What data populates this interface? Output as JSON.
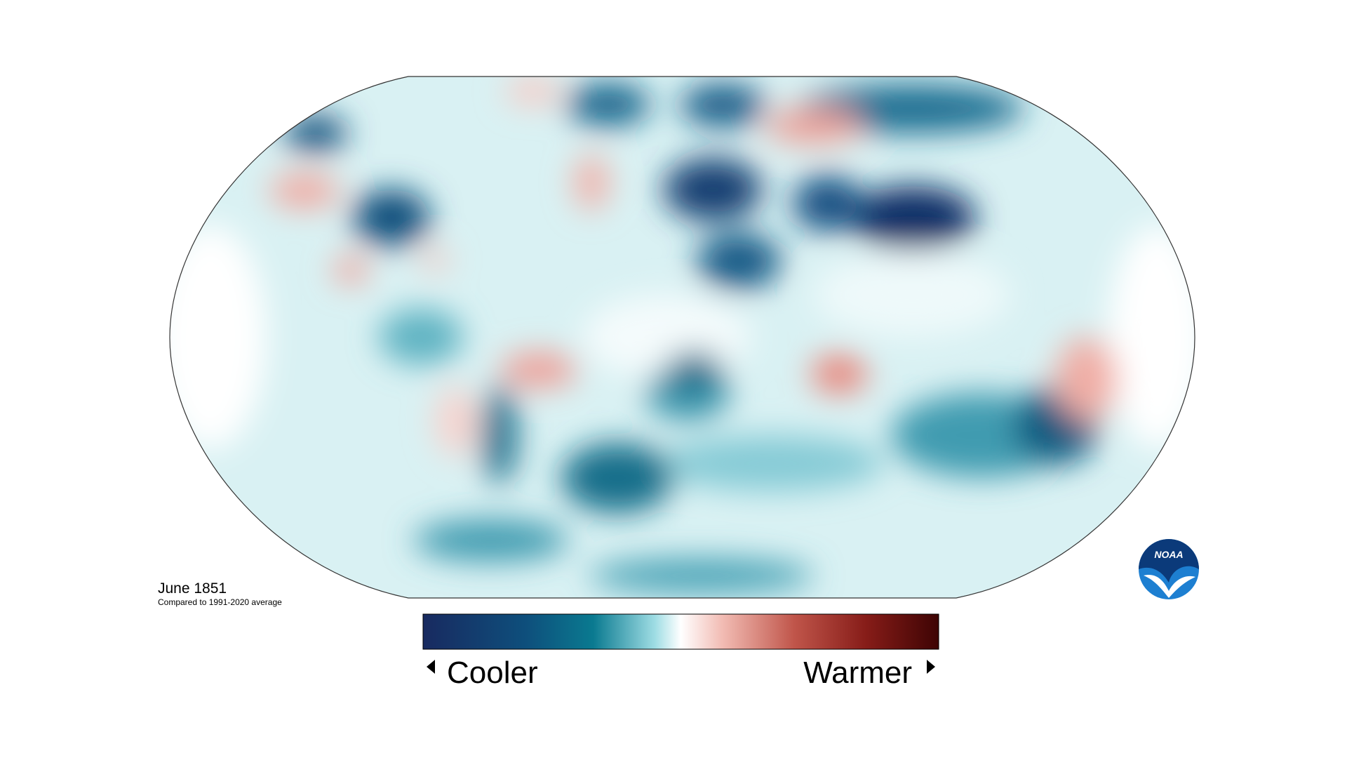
{
  "map": {
    "title": "June 1851",
    "subtitle": "Compared to 1991-2020 average"
  },
  "legend": {
    "low": "Cooler",
    "high": "Warmer"
  },
  "logo": {
    "text": "NOAA"
  }
}
